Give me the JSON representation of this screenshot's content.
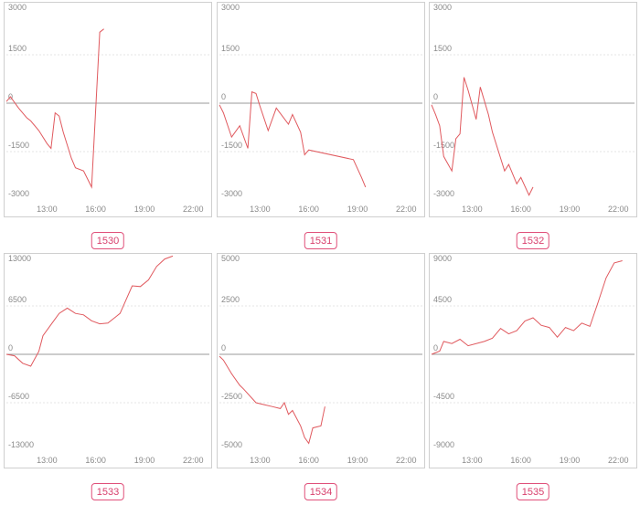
{
  "colors": {
    "line": "#e0595e",
    "grid": "#e6e6e6",
    "zero": "#9a9a9a",
    "tag": "#d8406d"
  },
  "chart_data": [
    {
      "type": "line",
      "label": "1530",
      "ylim": [
        -3000,
        3000
      ],
      "yticks": [
        3000,
        1500,
        0,
        -1500,
        -3000
      ],
      "xlim": [
        "10:30",
        "23:00"
      ],
      "xticks": [
        "13:00",
        "16:00",
        "19:00",
        "22:00"
      ],
      "points": [
        [
          "10:30",
          50
        ],
        [
          "10:45",
          200
        ],
        [
          "11:15",
          -150
        ],
        [
          "11:45",
          -450
        ],
        [
          "12:00",
          -550
        ],
        [
          "12:30",
          -850
        ],
        [
          "13:00",
          -1250
        ],
        [
          "13:15",
          -1400
        ],
        [
          "13:30",
          -300
        ],
        [
          "13:45",
          -400
        ],
        [
          "14:00",
          -900
        ],
        [
          "14:30",
          -1700
        ],
        [
          "14:45",
          -2000
        ],
        [
          "15:15",
          -2100
        ],
        [
          "15:45",
          -2600
        ],
        [
          "16:15",
          2200
        ],
        [
          "16:30",
          2300
        ]
      ]
    },
    {
      "type": "line",
      "label": "1531",
      "ylim": [
        -3000,
        3000
      ],
      "yticks": [
        3000,
        1500,
        0,
        -1500,
        -3000
      ],
      "xlim": [
        "10:30",
        "23:00"
      ],
      "xticks": [
        "13:00",
        "16:00",
        "19:00",
        "22:00"
      ],
      "points": [
        [
          "10:30",
          -50
        ],
        [
          "10:45",
          -300
        ],
        [
          "11:15",
          -1050
        ],
        [
          "11:45",
          -700
        ],
        [
          "12:15",
          -1400
        ],
        [
          "12:30",
          350
        ],
        [
          "12:45",
          300
        ],
        [
          "13:00",
          -100
        ],
        [
          "13:30",
          -850
        ],
        [
          "14:00",
          -150
        ],
        [
          "14:45",
          -650
        ],
        [
          "15:00",
          -350
        ],
        [
          "15:30",
          -900
        ],
        [
          "15:45",
          -1600
        ],
        [
          "16:00",
          -1450
        ],
        [
          "18:45",
          -1750
        ],
        [
          "19:15",
          -2300
        ],
        [
          "19:30",
          -2600
        ]
      ]
    },
    {
      "type": "line",
      "label": "1532",
      "ylim": [
        -3000,
        3000
      ],
      "yticks": [
        3000,
        1500,
        0,
        -1500,
        -3000
      ],
      "xlim": [
        "10:30",
        "23:00"
      ],
      "xticks": [
        "13:00",
        "16:00",
        "19:00",
        "22:00"
      ],
      "points": [
        [
          "10:30",
          -50
        ],
        [
          "10:45",
          -350
        ],
        [
          "11:00",
          -700
        ],
        [
          "11:15",
          -1650
        ],
        [
          "11:45",
          -2100
        ],
        [
          "12:00",
          -1100
        ],
        [
          "12:15",
          -950
        ],
        [
          "12:30",
          800
        ],
        [
          "12:45",
          400
        ],
        [
          "13:15",
          -500
        ],
        [
          "13:30",
          500
        ],
        [
          "14:00",
          -350
        ],
        [
          "14:15",
          -900
        ],
        [
          "14:45",
          -1700
        ],
        [
          "15:00",
          -2100
        ],
        [
          "15:15",
          -1900
        ],
        [
          "15:45",
          -2500
        ],
        [
          "16:00",
          -2300
        ],
        [
          "16:30",
          -2850
        ],
        [
          "16:45",
          -2600
        ]
      ]
    },
    {
      "type": "line",
      "label": "1533",
      "ylim": [
        -13000,
        13000
      ],
      "yticks": [
        13000,
        6500,
        0,
        -6500,
        -13000
      ],
      "xlim": [
        "10:30",
        "23:00"
      ],
      "xticks": [
        "13:00",
        "16:00",
        "19:00",
        "22:00"
      ],
      "points": [
        [
          "10:30",
          0
        ],
        [
          "11:00",
          -200
        ],
        [
          "11:30",
          -1200
        ],
        [
          "12:00",
          -1600
        ],
        [
          "12:30",
          400
        ],
        [
          "12:45",
          2500
        ],
        [
          "13:15",
          4000
        ],
        [
          "13:45",
          5500
        ],
        [
          "14:15",
          6200
        ],
        [
          "14:45",
          5500
        ],
        [
          "15:15",
          5300
        ],
        [
          "15:45",
          4500
        ],
        [
          "16:15",
          4100
        ],
        [
          "16:45",
          4200
        ],
        [
          "17:30",
          5500
        ],
        [
          "18:15",
          9200
        ],
        [
          "18:45",
          9100
        ],
        [
          "19:15",
          10000
        ],
        [
          "19:45",
          11800
        ],
        [
          "20:15",
          12800
        ],
        [
          "20:45",
          13200
        ]
      ]
    },
    {
      "type": "line",
      "label": "1534",
      "ylim": [
        -5000,
        5000
      ],
      "yticks": [
        5000,
        2500,
        0,
        -2500,
        -5000
      ],
      "xlim": [
        "10:30",
        "23:00"
      ],
      "xticks": [
        "13:00",
        "16:00",
        "19:00",
        "22:00"
      ],
      "points": [
        [
          "10:30",
          -100
        ],
        [
          "10:45",
          -300
        ],
        [
          "11:15",
          -1000
        ],
        [
          "11:45",
          -1600
        ],
        [
          "12:00",
          -1800
        ],
        [
          "12:45",
          -2500
        ],
        [
          "13:15",
          -2600
        ],
        [
          "13:45",
          -2700
        ],
        [
          "14:15",
          -2800
        ],
        [
          "14:30",
          -2500
        ],
        [
          "14:45",
          -3100
        ],
        [
          "15:00",
          -2900
        ],
        [
          "15:30",
          -3700
        ],
        [
          "15:45",
          -4300
        ],
        [
          "16:00",
          -4600
        ],
        [
          "16:15",
          -3800
        ],
        [
          "16:45",
          -3700
        ],
        [
          "17:00",
          -2700
        ]
      ]
    },
    {
      "type": "line",
      "label": "1535",
      "ylim": [
        -9000,
        9000
      ],
      "yticks": [
        9000,
        4500,
        0,
        -4500,
        -9000
      ],
      "xlim": [
        "10:30",
        "23:00"
      ],
      "xticks": [
        "13:00",
        "16:00",
        "19:00",
        "22:00"
      ],
      "points": [
        [
          "10:30",
          0
        ],
        [
          "11:00",
          300
        ],
        [
          "11:15",
          1200
        ],
        [
          "11:45",
          1000
        ],
        [
          "12:15",
          1400
        ],
        [
          "12:45",
          800
        ],
        [
          "13:45",
          1200
        ],
        [
          "14:15",
          1500
        ],
        [
          "14:45",
          2400
        ],
        [
          "15:15",
          1900
        ],
        [
          "15:45",
          2200
        ],
        [
          "16:15",
          3100
        ],
        [
          "16:45",
          3400
        ],
        [
          "17:15",
          2700
        ],
        [
          "17:45",
          2500
        ],
        [
          "18:15",
          1600
        ],
        [
          "18:45",
          2500
        ],
        [
          "19:15",
          2200
        ],
        [
          "19:45",
          2900
        ],
        [
          "20:15",
          2600
        ],
        [
          "20:45",
          4800
        ],
        [
          "21:15",
          7100
        ],
        [
          "21:45",
          8500
        ],
        [
          "22:15",
          8700
        ]
      ]
    }
  ]
}
